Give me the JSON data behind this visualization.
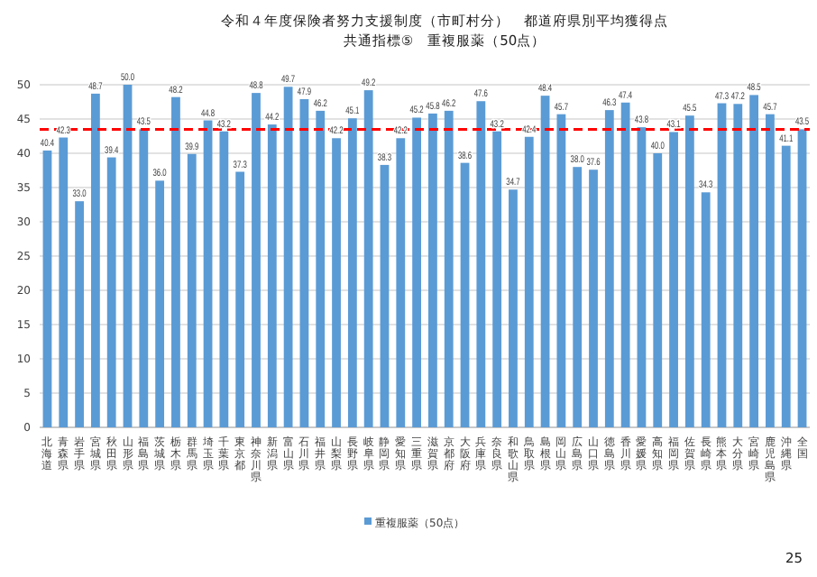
{
  "chart_data": {
    "type": "bar",
    "title": "令和４年度保険者努力支援制度（市町村分）　都道府県別平均獲得点",
    "subtitle": "共通指標⑤　重複服薬（50点）",
    "categories": [
      "北海道",
      "青森県",
      "岩手県",
      "宮城県",
      "秋田県",
      "山形県",
      "福島県",
      "茨城県",
      "栃木県",
      "群馬県",
      "埼玉県",
      "千葉県",
      "東京都",
      "神奈川県",
      "新潟県",
      "富山県",
      "石川県",
      "福井県",
      "山梨県",
      "長野県",
      "岐阜県",
      "静岡県",
      "愛知県",
      "三重県",
      "滋賀県",
      "京都府",
      "大阪府",
      "兵庫県",
      "奈良県",
      "和歌山県",
      "鳥取県",
      "島根県",
      "岡山県",
      "広島県",
      "山口県",
      "徳島県",
      "香川県",
      "愛媛県",
      "高知県",
      "福岡県",
      "佐賀県",
      "長崎県",
      "熊本県",
      "大分県",
      "宮崎県",
      "鹿児島県",
      "沖縄県",
      "全国"
    ],
    "series": [
      {
        "name": "重複服薬（50点）",
        "color": "#5b9bd5",
        "values": [
          40.4,
          42.3,
          33.0,
          48.7,
          39.4,
          50.0,
          43.5,
          36.0,
          48.2,
          39.9,
          44.8,
          43.2,
          37.3,
          48.8,
          44.2,
          49.7,
          47.9,
          46.2,
          42.2,
          45.1,
          49.2,
          38.3,
          42.2,
          45.2,
          45.8,
          46.2,
          38.6,
          47.6,
          43.2,
          34.7,
          42.4,
          48.4,
          45.7,
          38.0,
          37.6,
          46.3,
          47.4,
          43.8,
          40.0,
          43.1,
          45.5,
          34.3,
          47.3,
          47.2,
          48.5,
          45.7,
          41.1,
          43.5
        ]
      }
    ],
    "ylim": [
      0,
      50
    ],
    "yticks": [
      0,
      5,
      10,
      15,
      20,
      25,
      30,
      35,
      40,
      45,
      50
    ],
    "grid": "y",
    "value_labels": [
      "40.4",
      "42.3",
      "33.0",
      "48.7",
      "39.4",
      "50.0",
      "43.5",
      "36.0",
      "48.2",
      "39.9",
      "44.8",
      "43.2",
      "37.3",
      "48.8",
      "44.2",
      "49.7",
      "47.9",
      "46.2",
      "42.2",
      "45.1",
      "49.2",
      "38.3",
      "42.2",
      "45.2",
      "45.8",
      "46.2",
      "38.6",
      "47.6",
      "43.2",
      "34.7",
      "42.4",
      "48.4",
      "45.7",
      "38.0",
      "37.6",
      "46.3",
      "47.4",
      "43.8",
      "40.0",
      "43.1",
      "45.5",
      "34.3",
      "47.3",
      "47.2",
      "48.5",
      "45.7",
      "41.1",
      "43.5"
    ],
    "legend": "bottom",
    "ref_lines": [
      {
        "axis": "y",
        "value": 43.5,
        "color": "#ff0000",
        "line_style": "dashed"
      }
    ],
    "annotations": [
      "25"
    ]
  }
}
